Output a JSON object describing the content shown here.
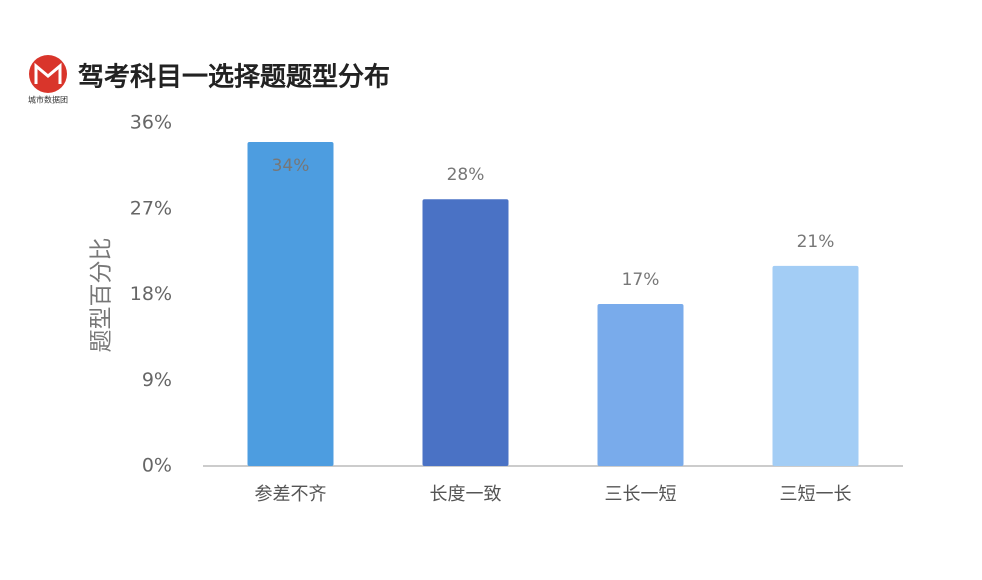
{
  "logo_text": "城市数据团",
  "chart_data": {
    "type": "bar",
    "title": "驾考科目一选择题题型分布",
    "y_label": "题型百分比",
    "categories": [
      "参差不齐",
      "长度一致",
      "三长一短",
      "三短一长"
    ],
    "values": [
      34,
      28,
      17,
      21
    ],
    "value_labels": [
      "34%",
      "28%",
      "17%",
      "21%"
    ],
    "colors": [
      "#4d9de0",
      "#4a72c5",
      "#79abeb",
      "#a3cdf5"
    ],
    "ylim": [
      0,
      36
    ],
    "yticks": [
      {
        "value": 0,
        "label": "0%"
      },
      {
        "value": 9,
        "label": "9%"
      },
      {
        "value": 18,
        "label": "18%"
      },
      {
        "value": 27,
        "label": "27%"
      },
      {
        "value": 36,
        "label": "36%"
      }
    ],
    "grid": false
  }
}
